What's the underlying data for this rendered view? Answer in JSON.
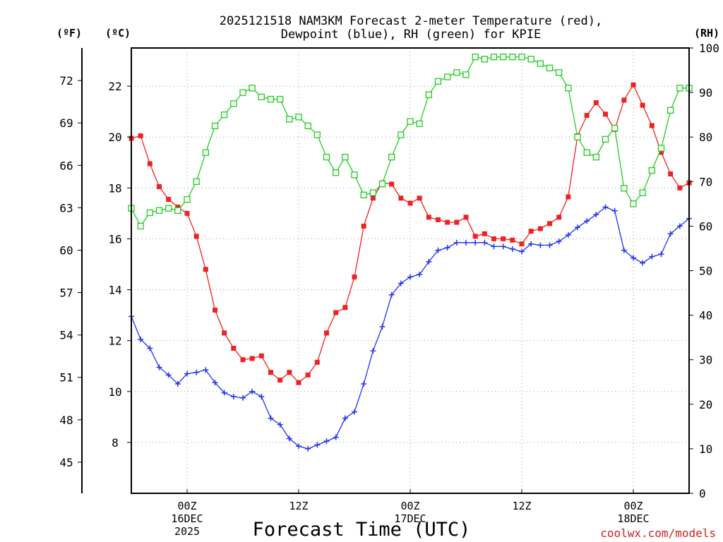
{
  "chart_data": {
    "type": "line",
    "title": "2025121518 NAM3KM Forecast 2-meter Temperature (red),",
    "subtitle": "Dewpoint (blue), RH (green) for KPIE",
    "xlabel": "Forecast Time (UTC)",
    "watermark": "coolwx.com/models",
    "y_left_outer_unit": "(ºF)",
    "y_left_unit": "(ºC)",
    "y_right_unit": "(RH)",
    "x_hours_range": [
      -6,
      54
    ],
    "ylim_c": [
      6,
      23.5
    ],
    "ylim_rh": [
      0,
      100
    ],
    "x_ticks": [
      {
        "hour": 0,
        "labels": [
          "00Z",
          "16DEC",
          "2025"
        ]
      },
      {
        "hour": 12,
        "labels": [
          "12Z"
        ]
      },
      {
        "hour": 24,
        "labels": [
          "00Z",
          "17DEC"
        ]
      },
      {
        "hour": 36,
        "labels": [
          "12Z"
        ]
      },
      {
        "hour": 48,
        "labels": [
          "00Z",
          "18DEC"
        ]
      }
    ],
    "celsius_ticks": [
      "8",
      "10",
      "12",
      "14",
      "16",
      "18",
      "20",
      "22"
    ],
    "fahrenheit_ticks": [
      "45",
      "48",
      "51",
      "54",
      "57",
      "60",
      "63",
      "66",
      "69",
      "72"
    ],
    "rh_ticks": [
      "0",
      "10",
      "20",
      "30",
      "40",
      "50",
      "60",
      "70",
      "80",
      "90",
      "100"
    ],
    "hours": [
      -6,
      -5,
      -4,
      -3,
      -2,
      -1,
      0,
      1,
      2,
      3,
      4,
      5,
      6,
      7,
      8,
      9,
      10,
      11,
      12,
      13,
      14,
      15,
      16,
      17,
      18,
      19,
      20,
      21,
      22,
      23,
      24,
      25,
      26,
      27,
      28,
      29,
      30,
      31,
      32,
      33,
      34,
      35,
      36,
      37,
      38,
      39,
      40,
      41,
      42,
      43,
      44,
      45,
      46,
      47,
      48,
      49,
      50,
      51,
      52,
      53,
      54
    ],
    "series": [
      {
        "name": "2-meter Temperature (°C)",
        "color": "#ee2222",
        "marker": "filled-square",
        "values": [
          19.95,
          20.05,
          18.95,
          18.05,
          17.55,
          17.25,
          17.0,
          16.1,
          14.8,
          13.2,
          12.3,
          11.7,
          11.25,
          11.3,
          11.4,
          10.75,
          10.45,
          10.75,
          10.35,
          10.65,
          11.15,
          12.3,
          13.1,
          13.3,
          14.5,
          16.5,
          17.6,
          18.2,
          18.15,
          17.6,
          17.4,
          17.6,
          16.85,
          16.75,
          16.65,
          16.65,
          16.85,
          16.1,
          16.2,
          16.0,
          16.0,
          15.95,
          15.8,
          16.3,
          16.4,
          16.6,
          16.85,
          17.65,
          20.05,
          20.85,
          21.35,
          20.9,
          20.3,
          21.45,
          22.05,
          21.25,
          20.45,
          19.4,
          18.55,
          18.0,
          18.2
        ]
      },
      {
        "name": "2-meter Dewpoint (°C)",
        "color": "#2233ee",
        "marker": "plus",
        "values": [
          12.95,
          12.05,
          11.7,
          10.95,
          10.65,
          10.3,
          10.7,
          10.75,
          10.85,
          10.35,
          9.95,
          9.8,
          9.75,
          10.0,
          9.8,
          8.95,
          8.7,
          8.15,
          7.85,
          7.75,
          7.9,
          8.05,
          8.2,
          8.95,
          9.2,
          10.3,
          11.6,
          12.55,
          13.8,
          14.25,
          14.5,
          14.6,
          15.1,
          15.55,
          15.65,
          15.85,
          15.85,
          15.85,
          15.85,
          15.7,
          15.7,
          15.6,
          15.5,
          15.8,
          15.75,
          15.75,
          15.9,
          16.15,
          16.45,
          16.7,
          16.95,
          17.25,
          17.1,
          15.55,
          15.25,
          15.05,
          15.3,
          15.4,
          16.2,
          16.5,
          16.8
        ]
      },
      {
        "name": "Relative Humidity (%)",
        "color": "#22cc22",
        "marker": "open-square",
        "values": [
          64,
          60,
          63,
          63.5,
          64,
          63.5,
          66,
          70,
          76.5,
          82.5,
          85,
          87.5,
          90,
          91,
          89,
          88.5,
          88.5,
          84,
          84.5,
          82.5,
          80.5,
          75.5,
          72,
          75.5,
          71.5,
          67,
          67.5,
          69.5,
          75.5,
          80.5,
          83.5,
          83,
          89.5,
          92.5,
          93.5,
          94.5,
          94,
          98,
          97.5,
          98,
          98,
          98,
          98,
          97.5,
          96.5,
          95.5,
          94.5,
          91,
          80,
          76.5,
          75.5,
          79.5,
          82,
          68.5,
          65,
          67.5,
          72.5,
          77.5,
          86,
          91,
          91
        ]
      }
    ]
  }
}
